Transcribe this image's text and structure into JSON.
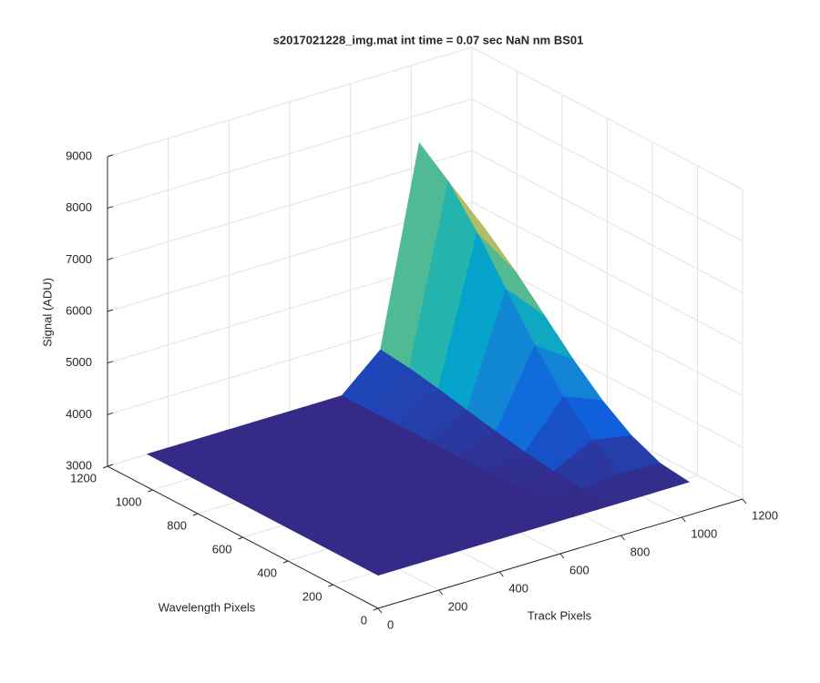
{
  "chart_data": {
    "type": "surface",
    "title": "s2017021228_img.mat int time = 0.07 sec  NaN nm BS01",
    "xlabel": "Track Pixels",
    "ylabel": "Wavelength Pixels",
    "zlabel": "Signal (ADU)",
    "x": [
      0,
      128,
      256,
      384,
      512,
      640,
      768,
      896,
      1024
    ],
    "y": [
      0,
      128,
      256,
      384,
      512,
      640,
      768,
      896,
      1024
    ],
    "z": [
      [
        3640,
        3640,
        3640,
        3640,
        3640,
        3640,
        3640,
        3640,
        3640
      ],
      [
        3640,
        3640,
        3640,
        3640,
        3640,
        3640,
        3655,
        3740,
        3710
      ],
      [
        3640,
        3640,
        3640,
        3640,
        3640,
        3640,
        3710,
        4090,
        3955
      ],
      [
        3640,
        3640,
        3640,
        3640,
        3640,
        3640,
        3790,
        4640,
        4340
      ],
      [
        3640,
        3640,
        3640,
        3640,
        3640,
        3640,
        3895,
        5340,
        4830
      ],
      [
        3640,
        3640,
        3640,
        3640,
        3640,
        3640,
        4015,
        6140,
        5390
      ],
      [
        3640,
        3640,
        3640,
        3640,
        3640,
        3640,
        4135,
        6940,
        5950
      ],
      [
        3640,
        3640,
        3640,
        3640,
        3640,
        3640,
        4240,
        7640,
        6440
      ],
      [
        3640,
        3640,
        3640,
        3640,
        3640,
        3640,
        4308,
        8090,
        6755
      ]
    ],
    "xlim": [
      0,
      1200
    ],
    "ylim": [
      0,
      1200
    ],
    "zlim": [
      3000,
      9000
    ],
    "xticks": [
      0,
      200,
      400,
      600,
      800,
      1000,
      1200
    ],
    "yticks": [
      0,
      200,
      400,
      600,
      800,
      1000,
      1200
    ],
    "zticks": [
      3000,
      4000,
      5000,
      6000,
      7000,
      8000,
      9000
    ],
    "grid": true,
    "colormap": [
      "#352a87",
      "#0f5cdd",
      "#1481d6",
      "#06a4ca",
      "#2eb7a4",
      "#87bf77",
      "#d1bb59",
      "#fec832",
      "#f9fb0e"
    ]
  }
}
